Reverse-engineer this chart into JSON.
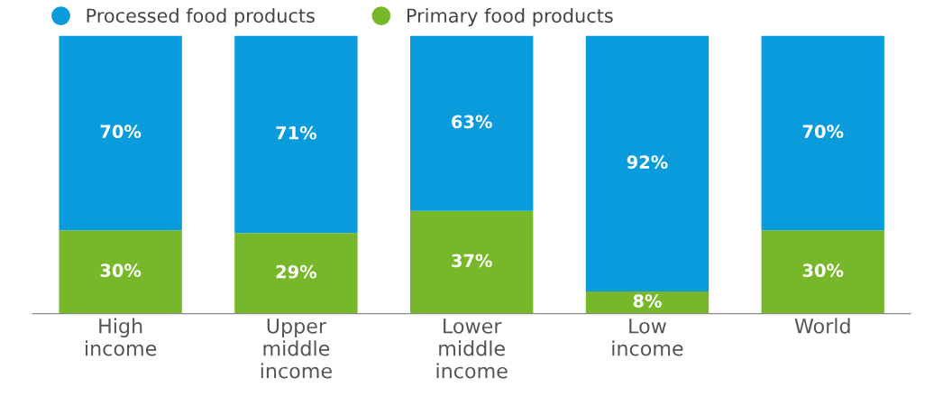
{
  "chart_data": {
    "type": "bar",
    "stacked": true,
    "categories": [
      "High\nincome",
      "Upper\nmiddle\nincome",
      "Lower\nmiddle\nincome",
      "Low\nincome",
      "World"
    ],
    "series": [
      {
        "name": "Primary food products",
        "color": "#77b82a",
        "values": [
          30,
          29,
          37,
          8,
          30
        ],
        "value_labels": [
          "30%",
          "29%",
          "37%",
          "8%",
          "30%"
        ]
      },
      {
        "name": "Processed food products",
        "color": "#0a9bdc",
        "values": [
          70,
          71,
          63,
          92,
          70
        ],
        "value_labels": [
          "70%",
          "71%",
          "63%",
          "92%",
          "70%"
        ]
      }
    ],
    "tick_labels": "x",
    "legend": "top left"
  }
}
